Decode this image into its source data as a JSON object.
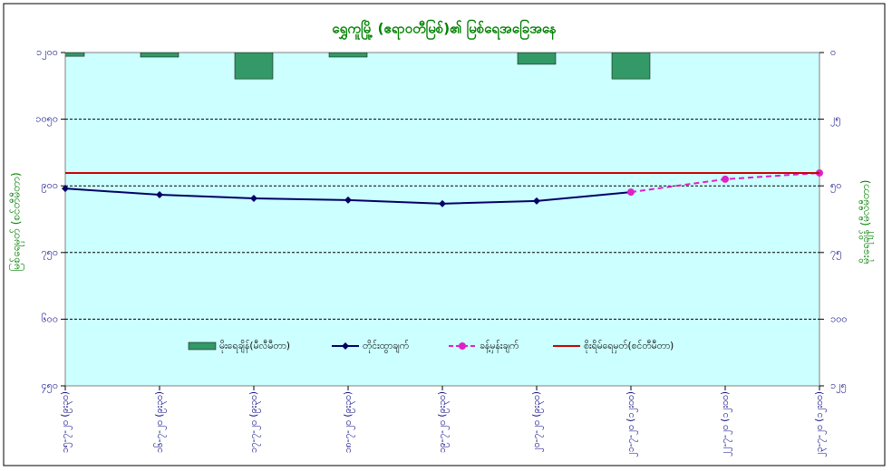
{
  "chart_data": {
    "type": "combo",
    "title": "ရွှေကူမြို့ (ဧရာဝတီမြစ်)၏ မြစ်ရေအခြေအနေ",
    "y_label": "မြစ်ရေမှတ် (စင်တီမီတာ)",
    "y2_label": "မိုးရေချိန် (မီလီမီတာ)",
    "categories": [
      "၁၅-၇-၂၀ (၉း၃၀)",
      "၁၆-၇-၂၀ (၉း၃၀)",
      "၁၇-၇-၂၀ (၉း၃၀)",
      "၁၈-၇-၂၀ (၉း၃၀)",
      "၁၉-၇-၂၀ (၉း၃၀)",
      "၂၀-၇-၂၀ (၉း၃၀)",
      "၂၁-၇-၂၀ (၁၂း၀၀)",
      "၂၂-၇-၂၀ (၁၂း၀၀)",
      "၂၃-၇-၂၀ (၁၂း၀၀)"
    ],
    "ylim": [
      450,
      1200
    ],
    "yticks": [
      {
        "value": 450,
        "label": "၄၅၀"
      },
      {
        "value": 600,
        "label": "၆၀၀"
      },
      {
        "value": 750,
        "label": "၇၅၀"
      },
      {
        "value": 900,
        "label": "၉၀၀"
      },
      {
        "value": 1050,
        "label": "၁၀၅၀"
      },
      {
        "value": 1200,
        "label": "၁၂၀၀"
      }
    ],
    "y2lim": [
      125,
      0
    ],
    "y2ticks": [
      {
        "value": 125,
        "label": "၁၂၅"
      },
      {
        "value": 100,
        "label": "၁၀၀"
      },
      {
        "value": 75,
        "label": "၇၅"
      },
      {
        "value": 50,
        "label": "၅၀"
      },
      {
        "value": 25,
        "label": "၂၅"
      },
      {
        "value": 0,
        "label": "၀"
      }
    ],
    "grid": true,
    "series": [
      {
        "name": "မိုးရေချိန်(မီလီမီတာ)",
        "type": "bar",
        "axis": "y2",
        "color": "#339966",
        "values": [
          1.4,
          1.7,
          9.9,
          1.7,
          0,
          4.4,
          9.9,
          null,
          null
        ]
      },
      {
        "name": "တိုင်းထွာချက်",
        "type": "line",
        "color": "#000066",
        "marker": "diamond",
        "values": [
          894,
          880,
          872,
          868,
          860,
          866,
          886,
          null,
          null
        ]
      },
      {
        "name": "ခန့်မှန်းချက်",
        "type": "line",
        "color": "#e020c8",
        "marker": "circle",
        "dashed": true,
        "values": [
          null,
          null,
          null,
          null,
          null,
          null,
          886,
          915,
          929
        ]
      },
      {
        "name": "စိုးရိမ်ရေမှတ်(စင်တီမီတာ)",
        "type": "line",
        "color": "#cc0000",
        "values": [
          929,
          929,
          929,
          929,
          929,
          929,
          929,
          929,
          929
        ]
      }
    ]
  }
}
